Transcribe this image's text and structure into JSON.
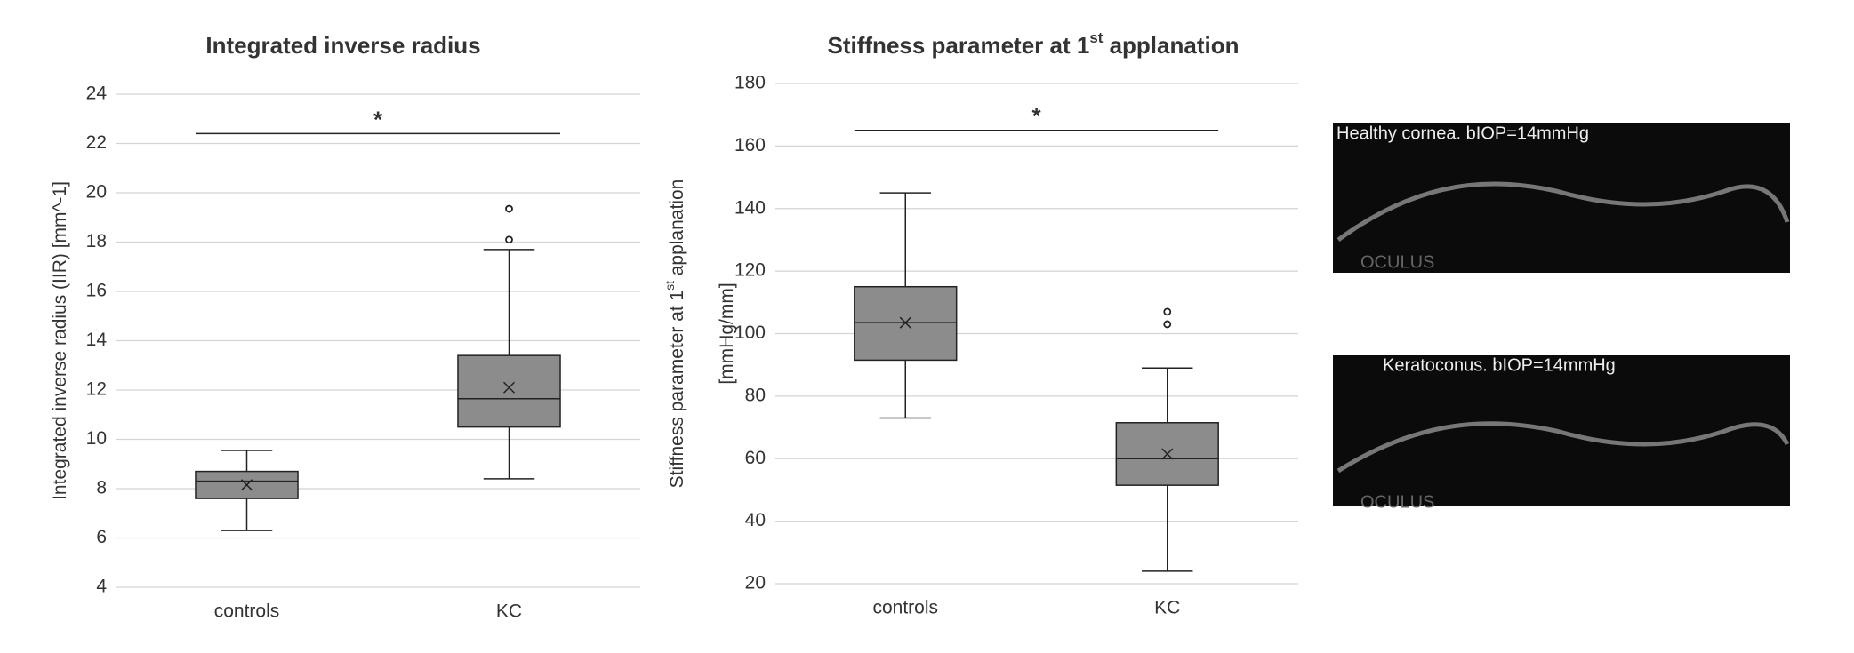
{
  "chart_data": [
    {
      "type": "box",
      "title": [
        "Integrated inverse radius"
      ],
      "ylabel": [
        [
          "Integrated inverse radius (IIR) [mm^-1]"
        ]
      ],
      "categories": [
        "controls",
        "KC"
      ],
      "boxes": [
        {
          "min": 6.3,
          "q1": 7.6,
          "median": 8.3,
          "q3": 8.7,
          "max": 9.55,
          "mean": 8.15,
          "outliers": []
        },
        {
          "min": 8.4,
          "q1": 10.5,
          "median": 11.65,
          "q3": 13.4,
          "max": 17.7,
          "mean": 12.1,
          "outliers": [
            18.1,
            19.35
          ]
        }
      ],
      "color": "#8c8c8c",
      "ylim": [
        4,
        24
      ],
      "yticks": [
        4,
        6,
        8,
        10,
        12,
        14,
        16,
        18,
        20,
        22,
        24
      ],
      "grid": true,
      "significance": {
        "y": 22.4,
        "label": "*"
      }
    },
    {
      "type": "box",
      "title": [
        "Stiffness parameter at 1",
        "st",
        " applanation"
      ],
      "ylabel": [
        [
          "Stiffness parameter at 1",
          "st",
          " applanation"
        ],
        [
          "[mmHg/mm]"
        ]
      ],
      "categories": [
        "controls",
        "KC"
      ],
      "boxes": [
        {
          "min": 73,
          "q1": 91.5,
          "median": 103.5,
          "q3": 115,
          "max": 145,
          "mean": 103.5,
          "outliers": []
        },
        {
          "min": 24,
          "q1": 51.5,
          "median": 60,
          "q3": 71.5,
          "max": 89,
          "mean": 61.5,
          "outliers": [
            103,
            107
          ]
        }
      ],
      "color": "#8c8c8c",
      "ylim": [
        20,
        180
      ],
      "yticks": [
        20,
        40,
        60,
        80,
        100,
        120,
        140,
        160,
        180
      ],
      "grid": true,
      "significance": {
        "y": 165,
        "label": "*"
      }
    }
  ],
  "images": [
    {
      "caption": "Healthy cornea. bIOP=14mmHg",
      "logo": "OCULUS"
    },
    {
      "caption": "Keratoconus. bIOP=14mmHg",
      "logo": "OCULUS"
    }
  ]
}
